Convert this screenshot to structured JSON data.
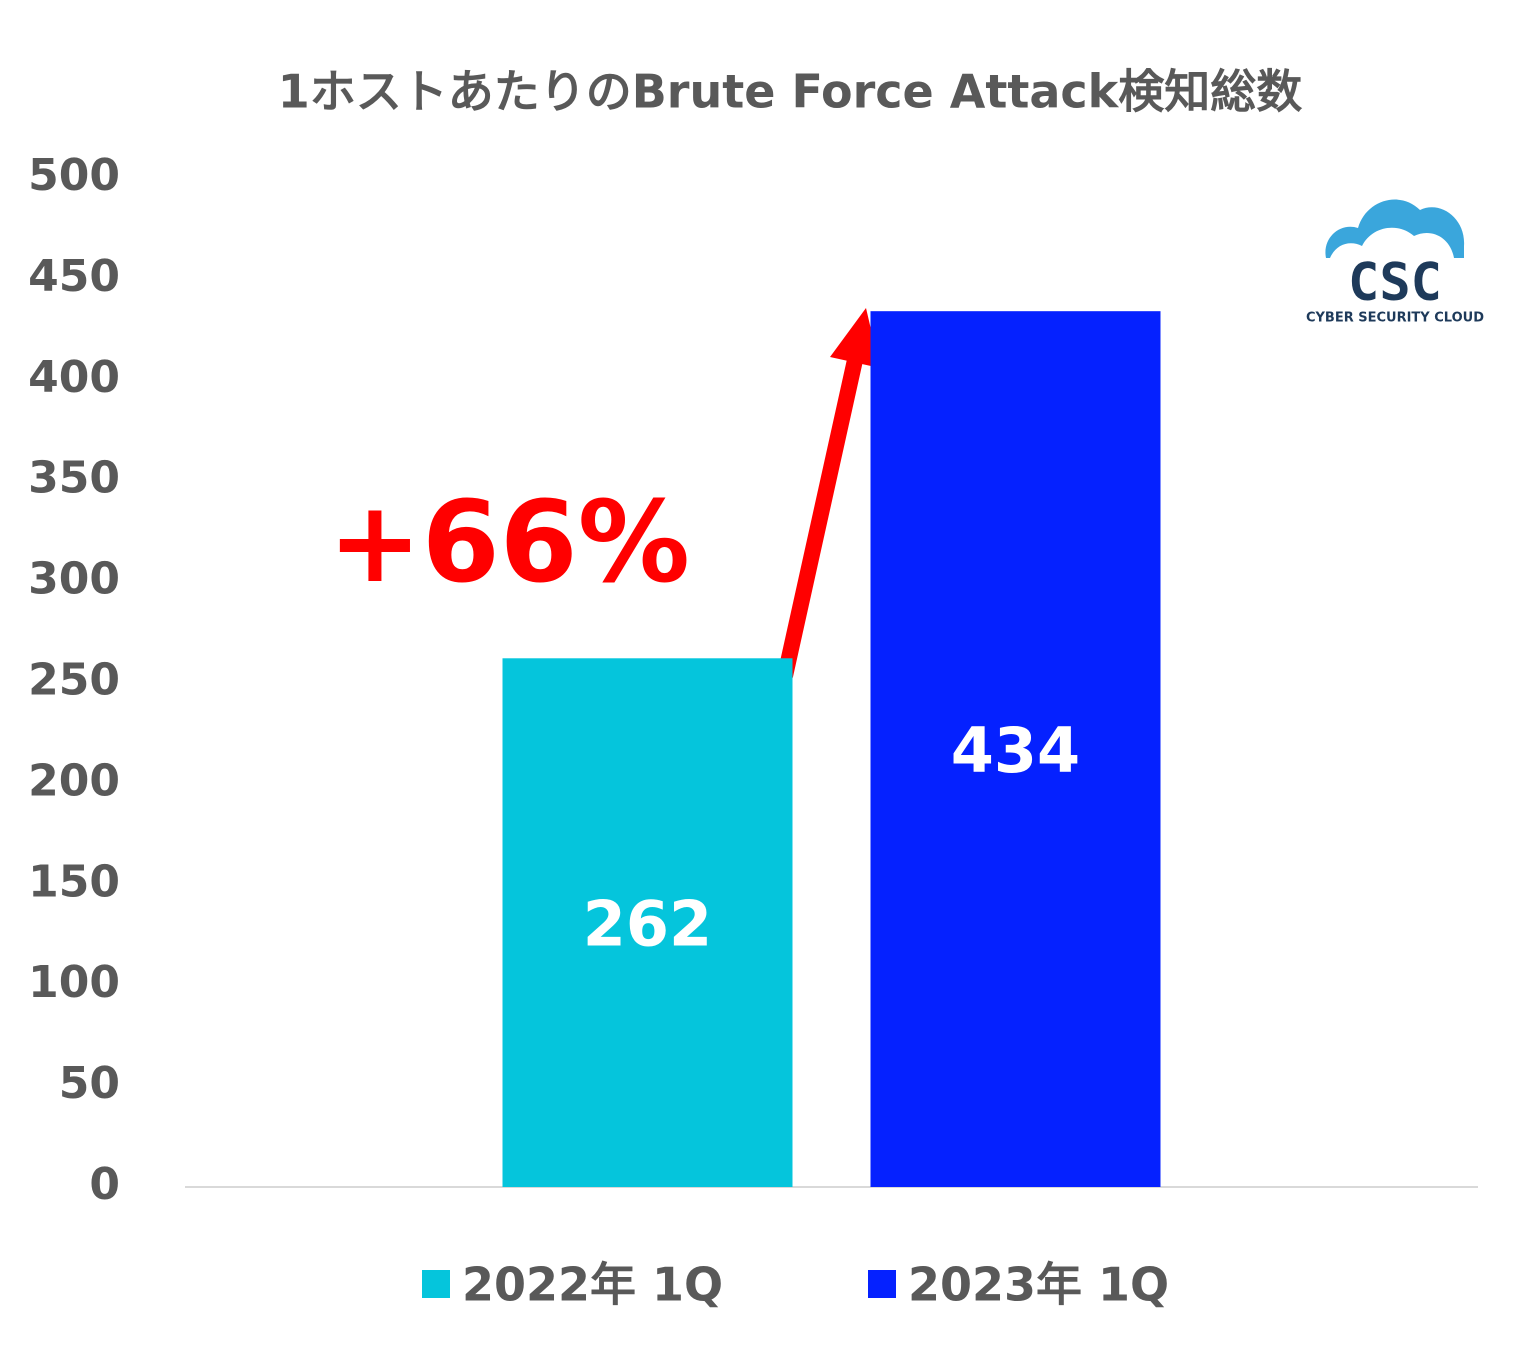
{
  "chart_data": {
    "type": "bar",
    "title": "1ホストあたりのBrute Force Attack検知総数",
    "categories": [
      null
    ],
    "series": [
      {
        "name": "2022年 1Q",
        "color": "#05c5dc",
        "values": [
          262
        ]
      },
      {
        "name": "2023年 1Q",
        "color": "#0521ff",
        "values": [
          434
        ]
      }
    ],
    "ylim": [
      0,
      500
    ],
    "yticks": [
      0,
      50,
      100,
      150,
      200,
      250,
      300,
      350,
      400,
      450,
      500
    ],
    "grid": false,
    "legend": "bottom",
    "annotation": "+66%",
    "logo": {
      "name": "CSC",
      "tagline": "CYBER SECURITY CLOUD"
    }
  }
}
